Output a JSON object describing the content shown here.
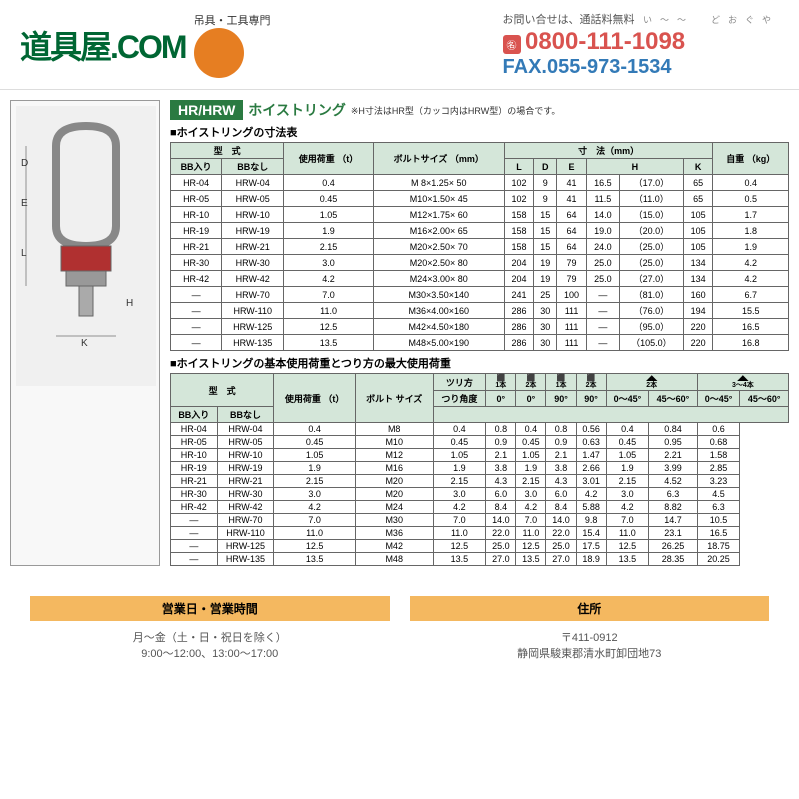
{
  "header": {
    "logo": "道具屋.COM",
    "logo_sub": "吊具・工具専門",
    "contact_label": "お問い合せは、通話料無料",
    "ruby": "い〜〜　どおぐや",
    "phone_icon": "㊔",
    "phone": "0800-111-1098",
    "fax": "FAX.055-973-1534"
  },
  "product": {
    "title_code": "HR/HRW",
    "title_jp": "ホイストリング",
    "note": "※H寸法はHR型（カッコ内はHRW型）の場合です。"
  },
  "table1": {
    "title": "■ホイストリングの寸法表",
    "headers": {
      "model": "型　式",
      "bb_in": "BB入り",
      "bb_out": "BBなし",
      "load": "使用荷重\n（t）",
      "bolt": "ボルトサイズ\n（mm）",
      "dims": "寸　法（mm）",
      "L": "L",
      "D": "D",
      "E": "E",
      "H": "H",
      "K": "K",
      "weight": "自重\n（kg）"
    },
    "rows": [
      [
        "HR-04",
        "HRW-04",
        "0.4",
        "M 8×1.25× 50",
        "102",
        "9",
        "41",
        "16.5",
        "（17.0）",
        "65",
        "0.4"
      ],
      [
        "HR-05",
        "HRW-05",
        "0.45",
        "M10×1.50× 45",
        "102",
        "9",
        "41",
        "11.5",
        "（11.0）",
        "65",
        "0.5"
      ],
      [
        "HR-10",
        "HRW-10",
        "1.05",
        "M12×1.75× 60",
        "158",
        "15",
        "64",
        "14.0",
        "（15.0）",
        "105",
        "1.7"
      ],
      [
        "HR-19",
        "HRW-19",
        "1.9",
        "M16×2.00× 65",
        "158",
        "15",
        "64",
        "19.0",
        "（20.0）",
        "105",
        "1.8"
      ],
      [
        "HR-21",
        "HRW-21",
        "2.15",
        "M20×2.50× 70",
        "158",
        "15",
        "64",
        "24.0",
        "（25.0）",
        "105",
        "1.9"
      ],
      [
        "HR-30",
        "HRW-30",
        "3.0",
        "M20×2.50× 80",
        "204",
        "19",
        "79",
        "25.0",
        "（25.0）",
        "134",
        "4.2"
      ],
      [
        "HR-42",
        "HRW-42",
        "4.2",
        "M24×3.00× 80",
        "204",
        "19",
        "79",
        "25.0",
        "（27.0）",
        "134",
        "4.2"
      ],
      [
        "―",
        "HRW-70",
        "7.0",
        "M30×3.50×140",
        "241",
        "25",
        "100",
        "―",
        "（81.0）",
        "160",
        "6.7"
      ],
      [
        "―",
        "HRW-110",
        "11.0",
        "M36×4.00×160",
        "286",
        "30",
        "111",
        "―",
        "（76.0）",
        "194",
        "15.5"
      ],
      [
        "―",
        "HRW-125",
        "12.5",
        "M42×4.50×180",
        "286",
        "30",
        "111",
        "―",
        "（95.0）",
        "220",
        "16.5"
      ],
      [
        "―",
        "HRW-135",
        "13.5",
        "M48×5.00×190",
        "286",
        "30",
        "111",
        "―",
        "（105.0）",
        "220",
        "16.8"
      ]
    ]
  },
  "table2": {
    "title": "■ホイストリングの基本使用荷重とつり方の最大使用荷重",
    "headers": {
      "model": "型　式",
      "bb_in": "BB入り",
      "bb_out": "BBなし",
      "load": "使用荷重\n（t）",
      "bolt": "ボルト\nサイズ",
      "lift_type": "ツリ方",
      "angle": "つり角度",
      "g1a": "G",
      "g1a_n": "1本",
      "g2a": "G",
      "g2a_n": "2本",
      "g1b": "G",
      "g1b_n": "1本",
      "g2b": "G",
      "g2b_n": "2本",
      "g2c": "G",
      "g2c_n": "2本",
      "g34": "G",
      "g34_n": "3〜4本",
      "a0": "0°",
      "a0b": "0°",
      "a90": "90°",
      "a90b": "90°",
      "a045": "0〜45°",
      "a4560": "45〜60°",
      "a045b": "0〜45°",
      "a4560b": "45〜60°"
    },
    "rows": [
      [
        "HR-04",
        "HRW-04",
        "0.4",
        "M8",
        "0.4",
        "0.8",
        "0.4",
        "0.8",
        "0.56",
        "0.4",
        "0.84",
        "0.6"
      ],
      [
        "HR-05",
        "HRW-05",
        "0.45",
        "M10",
        "0.45",
        "0.9",
        "0.45",
        "0.9",
        "0.63",
        "0.45",
        "0.95",
        "0.68"
      ],
      [
        "HR-10",
        "HRW-10",
        "1.05",
        "M12",
        "1.05",
        "2.1",
        "1.05",
        "2.1",
        "1.47",
        "1.05",
        "2.21",
        "1.58"
      ],
      [
        "HR-19",
        "HRW-19",
        "1.9",
        "M16",
        "1.9",
        "3.8",
        "1.9",
        "3.8",
        "2.66",
        "1.9",
        "3.99",
        "2.85"
      ],
      [
        "HR-21",
        "HRW-21",
        "2.15",
        "M20",
        "2.15",
        "4.3",
        "2.15",
        "4.3",
        "3.01",
        "2.15",
        "4.52",
        "3.23"
      ],
      [
        "HR-30",
        "HRW-30",
        "3.0",
        "M20",
        "3.0",
        "6.0",
        "3.0",
        "6.0",
        "4.2",
        "3.0",
        "6.3",
        "4.5"
      ],
      [
        "HR-42",
        "HRW-42",
        "4.2",
        "M24",
        "4.2",
        "8.4",
        "4.2",
        "8.4",
        "5.88",
        "4.2",
        "8.82",
        "6.3"
      ],
      [
        "―",
        "HRW-70",
        "7.0",
        "M30",
        "7.0",
        "14.0",
        "7.0",
        "14.0",
        "9.8",
        "7.0",
        "14.7",
        "10.5"
      ],
      [
        "―",
        "HRW-110",
        "11.0",
        "M36",
        "11.0",
        "22.0",
        "11.0",
        "22.0",
        "15.4",
        "11.0",
        "23.1",
        "16.5"
      ],
      [
        "―",
        "HRW-125",
        "12.5",
        "M42",
        "12.5",
        "25.0",
        "12.5",
        "25.0",
        "17.5",
        "12.5",
        "26.25",
        "18.75"
      ],
      [
        "―",
        "HRW-135",
        "13.5",
        "M48",
        "13.5",
        "27.0",
        "13.5",
        "27.0",
        "18.9",
        "13.5",
        "28.35",
        "20.25"
      ]
    ]
  },
  "footer": {
    "hours_head": "営業日・営業時間",
    "hours_body1": "月〜金（土・日・祝日を除く）",
    "hours_body2": "9:00〜12:00、13:00〜17:00",
    "addr_head": "住所",
    "addr_body1": "〒411-0912",
    "addr_body2": "静岡県駿東郡清水町卸団地73"
  },
  "colors": {
    "green": "#2a7a41",
    "header_green": "#006633",
    "red": "#d9534f",
    "blue": "#337ab7",
    "orange": "#f4b860",
    "th_bg": "#d4e6d9"
  }
}
